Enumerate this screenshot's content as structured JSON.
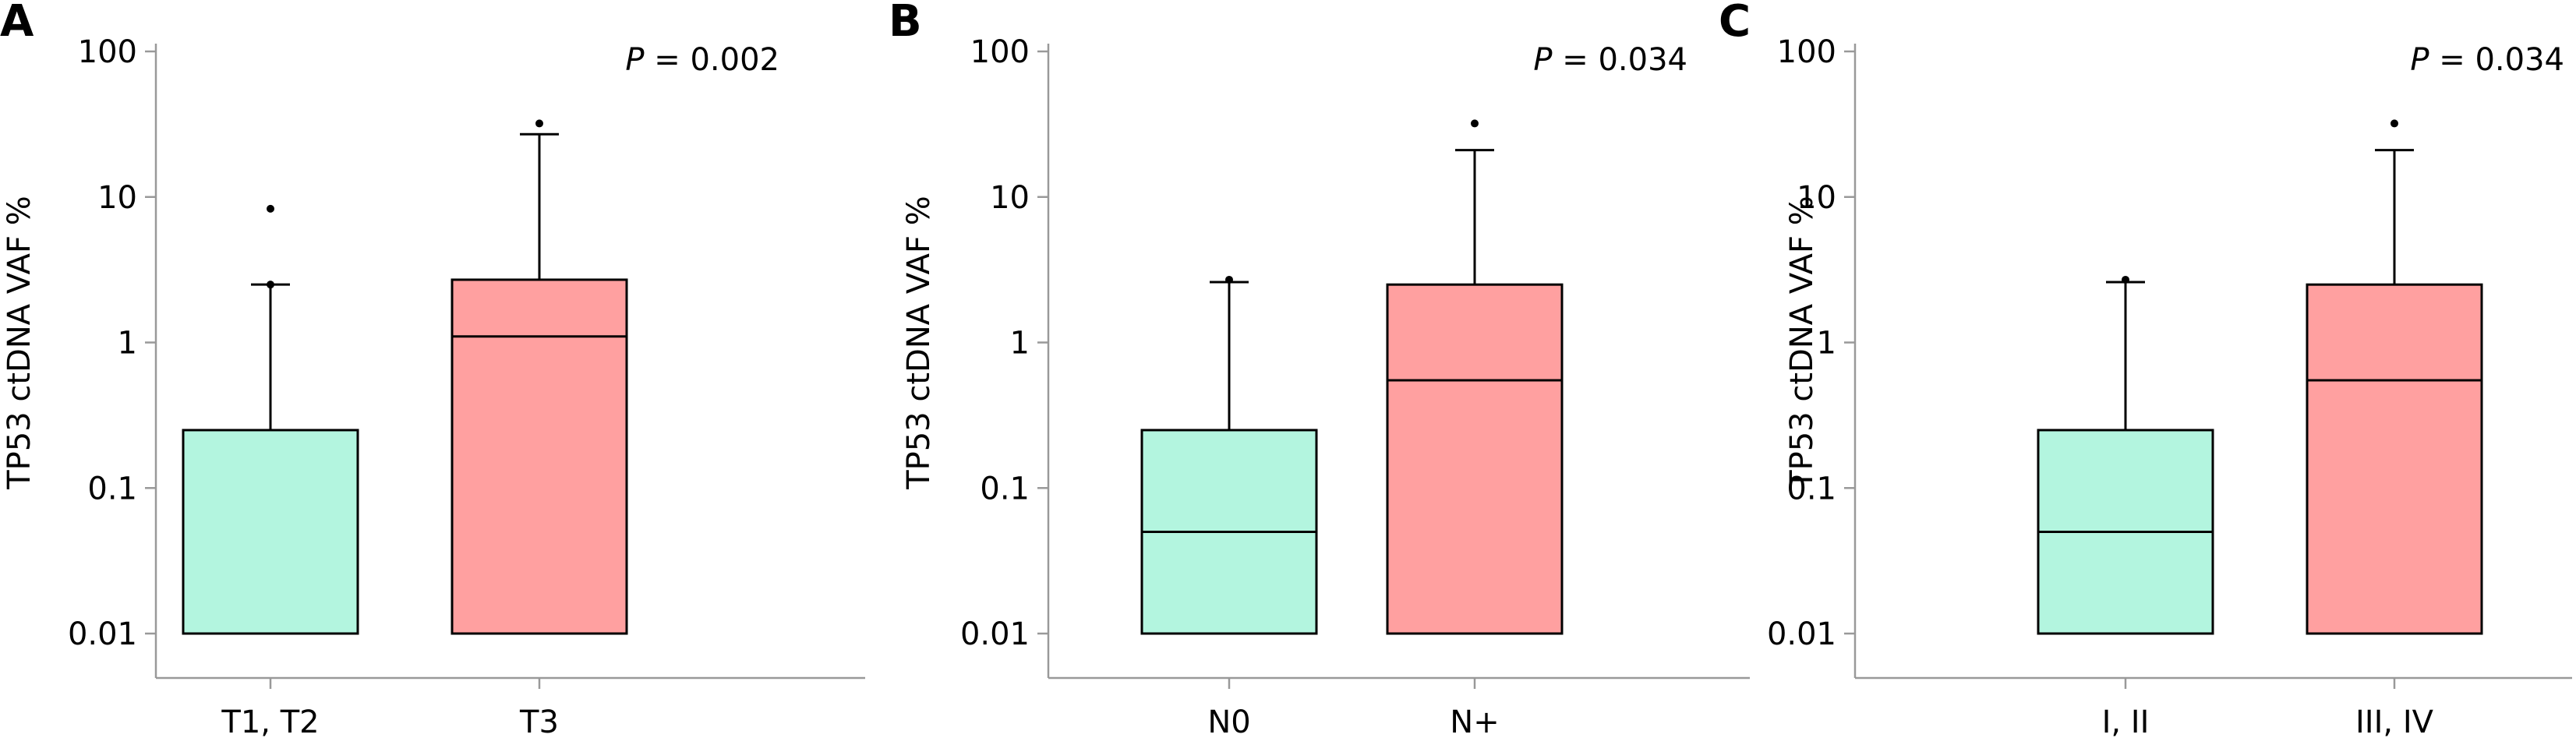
{
  "chart_data": [
    {
      "type": "box",
      "panel": "A",
      "ylabel": "TP53 ctDNA VAF %",
      "yscale": "log",
      "ylim": [
        0.01,
        100
      ],
      "yticks": [
        0.01,
        0.1,
        1,
        10,
        100
      ],
      "ytick_labels": [
        "0.01",
        "0.1",
        "1",
        "10",
        "100"
      ],
      "p_label": "P",
      "p_value": " = 0.002",
      "categories": [
        "T1, T2",
        "T3"
      ],
      "boxes": [
        {
          "category": "T1, T2",
          "color": "#b3f5df",
          "min": 0.01,
          "q1": 0.01,
          "median": 0.01,
          "q3": 0.25,
          "max": 2.5,
          "outliers": [
            2.5,
            8.3
          ]
        },
        {
          "category": "T3",
          "color": "#ffa0a0",
          "min": 0.01,
          "q1": 0.01,
          "median": 1.1,
          "q3": 2.7,
          "max": 27,
          "outliers": [
            32
          ]
        }
      ]
    },
    {
      "type": "box",
      "panel": "B",
      "ylabel": "TP53 ctDNA VAF %",
      "yscale": "log",
      "ylim": [
        0.01,
        100
      ],
      "yticks": [
        0.01,
        0.1,
        1,
        10,
        100
      ],
      "ytick_labels": [
        "0.01",
        "0.1",
        "1",
        "10",
        "100"
      ],
      "p_label": "P",
      "p_value": " = 0.034",
      "categories": [
        "N0",
        "N+"
      ],
      "boxes": [
        {
          "category": "N0",
          "color": "#b3f5df",
          "min": 0.01,
          "q1": 0.01,
          "median": 0.05,
          "q3": 0.25,
          "max": 2.6,
          "outliers": [
            2.7
          ]
        },
        {
          "category": "N+",
          "color": "#ffa0a0",
          "min": 0.01,
          "q1": 0.01,
          "median": 0.55,
          "q3": 2.5,
          "max": 21,
          "outliers": [
            32
          ]
        }
      ]
    },
    {
      "type": "box",
      "panel": "C",
      "ylabel": "TP53 ctDNA VAF %",
      "yscale": "log",
      "ylim": [
        0.01,
        100
      ],
      "yticks": [
        0.01,
        0.1,
        1,
        10,
        100
      ],
      "ytick_labels": [
        "0.01",
        "0.1",
        "1",
        "10",
        "100"
      ],
      "p_label": "P",
      "p_value": " = 0.034",
      "categories": [
        "I, II",
        "III, IV"
      ],
      "boxes": [
        {
          "category": "I, II",
          "color": "#b3f5df",
          "min": 0.01,
          "q1": 0.01,
          "median": 0.05,
          "q3": 0.25,
          "max": 2.6,
          "outliers": [
            2.7
          ]
        },
        {
          "category": "III, IV",
          "color": "#ffa0a0",
          "min": 0.01,
          "q1": 0.01,
          "median": 0.55,
          "q3": 2.5,
          "max": 21,
          "outliers": [
            32
          ]
        }
      ]
    }
  ]
}
